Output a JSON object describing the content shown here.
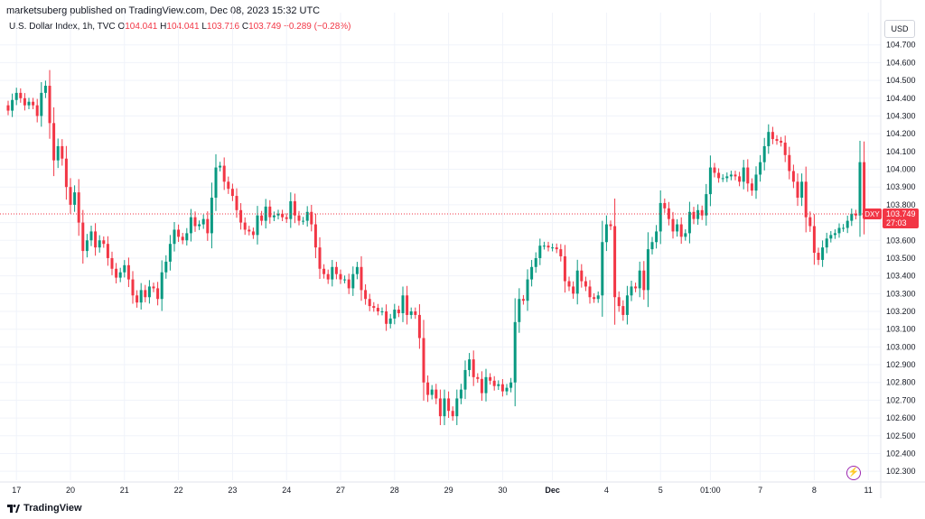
{
  "header": {
    "publisher_line": "marketsuberg published on TradingView.com, Dec 08, 2023 15:32 UTC",
    "symbol": "U.S. Dollar Index, 1h, TVC",
    "o_label": "O",
    "o_value": "104.041",
    "h_label": "H",
    "h_value": "104.041",
    "l_label": "L",
    "l_value": "103.716",
    "c_label": "C",
    "c_value": "103.749",
    "change": "−0.289 (−0.28%)"
  },
  "currency_button": "USD",
  "price_tag": {
    "symbol": "DXY",
    "price": "103.749",
    "countdown": "27:03",
    "color": "#f23645"
  },
  "footer": {
    "brand": "TradingView"
  },
  "colors": {
    "up": "#089981",
    "down": "#f23645",
    "grid": "#f0f3fa",
    "axis": "#e0e3eb"
  },
  "chart_data": {
    "type": "candlestick",
    "title": "U.S. Dollar Index, 1h, TVC",
    "ylim": [
      102.25,
      104.78
    ],
    "y_ticks": [
      "102.300",
      "102.400",
      "102.500",
      "102.600",
      "102.700",
      "102.800",
      "102.900",
      "103.000",
      "103.100",
      "103.200",
      "103.300",
      "103.400",
      "103.500",
      "103.600",
      "103.700",
      "103.800",
      "103.900",
      "104.000",
      "104.100",
      "104.200",
      "104.300",
      "104.400",
      "104.500",
      "104.600",
      "104.700"
    ],
    "x_ticks": [
      {
        "label": "17",
        "i": 2
      },
      {
        "label": "20",
        "i": 15
      },
      {
        "label": "21",
        "i": 28
      },
      {
        "label": "22",
        "i": 41
      },
      {
        "label": "23",
        "i": 54
      },
      {
        "label": "24",
        "i": 67
      },
      {
        "label": "27",
        "i": 80
      },
      {
        "label": "28",
        "i": 93
      },
      {
        "label": "29",
        "i": 106
      },
      {
        "label": "30",
        "i": 119
      },
      {
        "label": "Dec",
        "i": 131
      },
      {
        "label": "4",
        "i": 144
      },
      {
        "label": "5",
        "i": 157
      },
      {
        "label": "01:00",
        "i": 169
      },
      {
        "label": "7",
        "i": 181
      },
      {
        "label": "8",
        "i": 194
      },
      {
        "label": "11",
        "i": 207
      }
    ],
    "close": [
      104.33,
      104.39,
      104.43,
      104.4,
      104.36,
      104.38,
      104.36,
      104.3,
      104.43,
      104.47,
      104.26,
      104.05,
      104.13,
      104.06,
      103.9,
      103.8,
      103.87,
      103.7,
      103.54,
      103.6,
      103.65,
      103.56,
      103.6,
      103.58,
      103.5,
      103.44,
      103.39,
      103.42,
      103.46,
      103.38,
      103.29,
      103.25,
      103.32,
      103.28,
      103.34,
      103.33,
      103.27,
      103.42,
      103.48,
      103.58,
      103.66,
      103.62,
      103.6,
      103.64,
      103.73,
      103.68,
      103.69,
      103.72,
      103.64,
      103.84,
      104.01,
      104.02,
      103.93,
      103.89,
      103.85,
      103.77,
      103.7,
      103.66,
      103.65,
      103.63,
      103.74,
      103.71,
      103.79,
      103.73,
      103.74,
      103.75,
      103.73,
      103.72,
      103.82,
      103.74,
      103.71,
      103.71,
      103.76,
      103.69,
      103.56,
      103.44,
      103.41,
      103.38,
      103.45,
      103.41,
      103.38,
      103.38,
      103.33,
      103.41,
      103.45,
      103.32,
      103.27,
      103.23,
      103.22,
      103.2,
      103.2,
      103.13,
      103.16,
      103.21,
      103.19,
      103.29,
      103.18,
      103.2,
      103.18,
      103.05,
      102.8,
      102.73,
      102.76,
      102.71,
      102.61,
      102.71,
      102.64,
      102.61,
      102.71,
      102.76,
      102.87,
      102.93,
      102.83,
      102.82,
      102.74,
      102.83,
      102.81,
      102.78,
      102.79,
      102.75,
      102.77,
      102.8,
      103.14,
      103.27,
      103.26,
      103.38,
      103.45,
      103.5,
      103.57,
      103.57,
      103.56,
      103.56,
      103.55,
      103.51,
      103.37,
      103.34,
      103.3,
      103.43,
      103.37,
      103.34,
      103.28,
      103.27,
      103.29,
      103.59,
      103.69,
      103.68,
      103.28,
      103.23,
      103.18,
      103.29,
      103.34,
      103.33,
      103.43,
      103.32,
      103.55,
      103.59,
      103.65,
      103.81,
      103.78,
      103.72,
      103.65,
      103.69,
      103.62,
      103.64,
      103.76,
      103.72,
      103.77,
      103.74,
      103.86,
      104.01,
      103.98,
      103.95,
      103.95,
      103.96,
      103.97,
      103.96,
      103.93,
      104.01,
      103.92,
      103.88,
      103.97,
      104.04,
      104.13,
      104.21,
      104.17,
      104.16,
      104.15,
      104.08,
      103.99,
      103.93,
      103.84,
      103.93,
      103.73,
      103.68,
      103.53,
      103.49,
      103.56,
      103.61,
      103.63,
      103.64,
      103.67,
      103.67,
      103.71,
      103.75,
      103.74,
      104.04,
      103.75
    ],
    "last_price": 103.749
  }
}
